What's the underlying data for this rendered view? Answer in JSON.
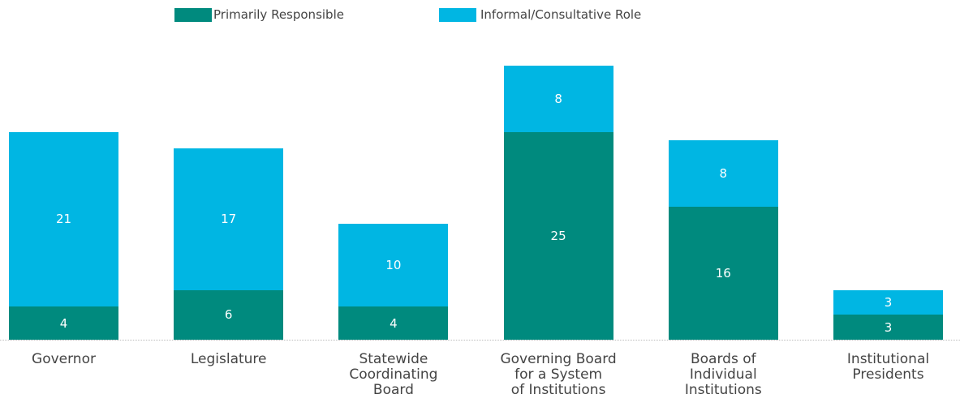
{
  "chart_data": {
    "type": "stacked-bar",
    "categories": [
      "Governor",
      "Legislature",
      "Statewide\nCoordinating\nBoard",
      "Governing Board\nfor a System\nof Institutions",
      "Boards of\nIndividual\nInstitutions",
      "Institutional\nPresidents"
    ],
    "series": [
      {
        "name": "Primarily Responsible",
        "color": "#008a7e",
        "values": [
          4,
          6,
          4,
          25,
          16,
          3
        ]
      },
      {
        "name": "Informal/Consultative Role",
        "color": "#00b6e3",
        "values": [
          21,
          17,
          10,
          8,
          8,
          3
        ]
      }
    ],
    "legend": "top"
  }
}
